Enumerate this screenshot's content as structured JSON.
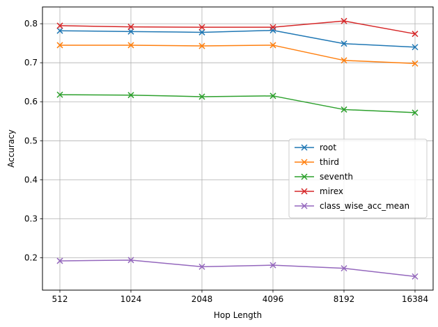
{
  "chart_data": {
    "type": "line",
    "xlabel": "Hop Length",
    "ylabel": "Accuracy",
    "categories": [
      "512",
      "1024",
      "2048",
      "4096",
      "8192",
      "16384"
    ],
    "yticks": [
      "0.2",
      "0.3",
      "0.4",
      "0.5",
      "0.6",
      "0.7",
      "0.8"
    ],
    "ylim": [
      0.117,
      0.843
    ],
    "grid": true,
    "legend_position": "center-right",
    "marker": "x",
    "series": [
      {
        "name": "root",
        "color": "#1f77b4",
        "values": [
          0.782,
          0.78,
          0.778,
          0.783,
          0.749,
          0.74
        ]
      },
      {
        "name": "third",
        "color": "#ff7f0e",
        "values": [
          0.745,
          0.745,
          0.743,
          0.745,
          0.706,
          0.698
        ]
      },
      {
        "name": "seventh",
        "color": "#2ca02c",
        "values": [
          0.618,
          0.617,
          0.613,
          0.615,
          0.58,
          0.572
        ]
      },
      {
        "name": "mirex",
        "color": "#d62728",
        "values": [
          0.795,
          0.792,
          0.791,
          0.791,
          0.807,
          0.774
        ]
      },
      {
        "name": "class_wise_acc_mean",
        "color": "#9467bd",
        "values": [
          0.192,
          0.194,
          0.177,
          0.181,
          0.173,
          0.152
        ]
      }
    ]
  }
}
